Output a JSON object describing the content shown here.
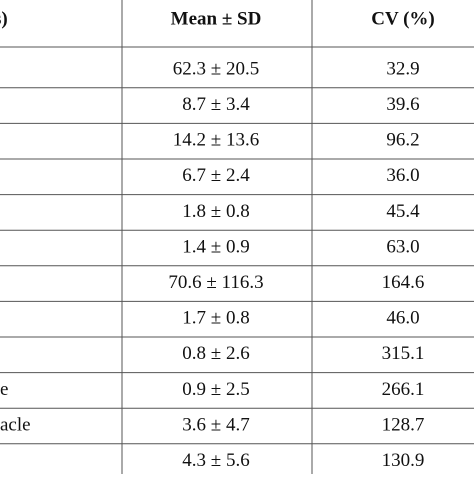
{
  "table": {
    "header": [
      "s)",
      "Mean ± SD",
      "CV (%)"
    ],
    "rows": [
      {
        "mean_sd": "62.3 ± 20.5",
        "cv": "32.9"
      },
      {
        "mean_sd": "8.7 ± 3.4",
        "cv": "39.6"
      },
      {
        "mean_sd": "14.2 ± 13.6",
        "cv": "96.2"
      },
      {
        "mean_sd": "6.7 ± 2.4",
        "cv": "36.0"
      },
      {
        "mean_sd": "1.8 ± 0.8",
        "cv": "45.4"
      },
      {
        "mean_sd": "1.4 ± 0.9",
        "cv": "63.0"
      },
      {
        "mean_sd": "70.6 ± 116.3",
        "cv": "164.6"
      },
      {
        "mean_sd": "1.7 ± 0.8",
        "cv": "46.0"
      },
      {
        "mean_sd": "0.8 ± 2.6",
        "cv": "315.1"
      },
      {
        "label": "e",
        "mean_sd": "0.9 ± 2.5",
        "cv": "266.1"
      },
      {
        "label": "acle",
        "mean_sd": "3.6 ± 4.7",
        "cv": "128.7"
      },
      {
        "mean_sd": "4.3 ± 5.6",
        "cv": "130.9"
      }
    ]
  }
}
